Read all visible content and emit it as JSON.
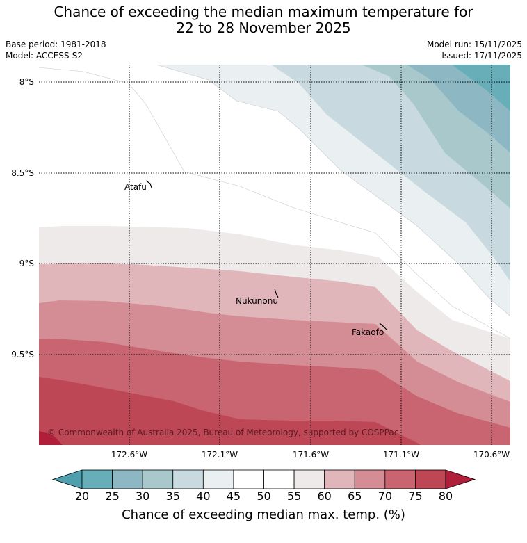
{
  "title": {
    "line1": "Chance of exceeding the median maximum temperature for",
    "line2": "22 to 28 November 2025"
  },
  "meta": {
    "base_period": "Base period: 1981-2018",
    "model": "Model: ACCESS-S2",
    "model_run": "Model run: 15/11/2025",
    "issued": "Issued: 17/11/2025"
  },
  "map": {
    "lon_labels": [
      "172.6°W",
      "172.1°W",
      "171.6°W",
      "171.1°W",
      "170.6°W"
    ],
    "lat_labels": [
      "8°S",
      "8.5°S",
      "9°S",
      "9.5°S"
    ],
    "places": [
      "Atafu",
      "Nukunonu",
      "Fakaofo"
    ],
    "copyright": "© Commonwealth of Australia 2025, Bureau of Meteorology, supported by COSPPac"
  },
  "colorbar": {
    "ticks": [
      "20",
      "25",
      "30",
      "35",
      "40",
      "45",
      "50",
      "55",
      "60",
      "65",
      "70",
      "75",
      "80"
    ],
    "colors": [
      "#67aeb9",
      "#8db8c3",
      "#a8c8cc",
      "#c8dadf",
      "#eaeff2",
      "#ffffff",
      "#ffffff",
      "#eeeaea",
      "#e0b6bb",
      "#d58d95",
      "#c96570",
      "#be4755"
    ],
    "under_color": "#4f9fae",
    "over_color": "#b01e3a",
    "label": "Chance of exceeding median max. temp. (%)"
  }
}
